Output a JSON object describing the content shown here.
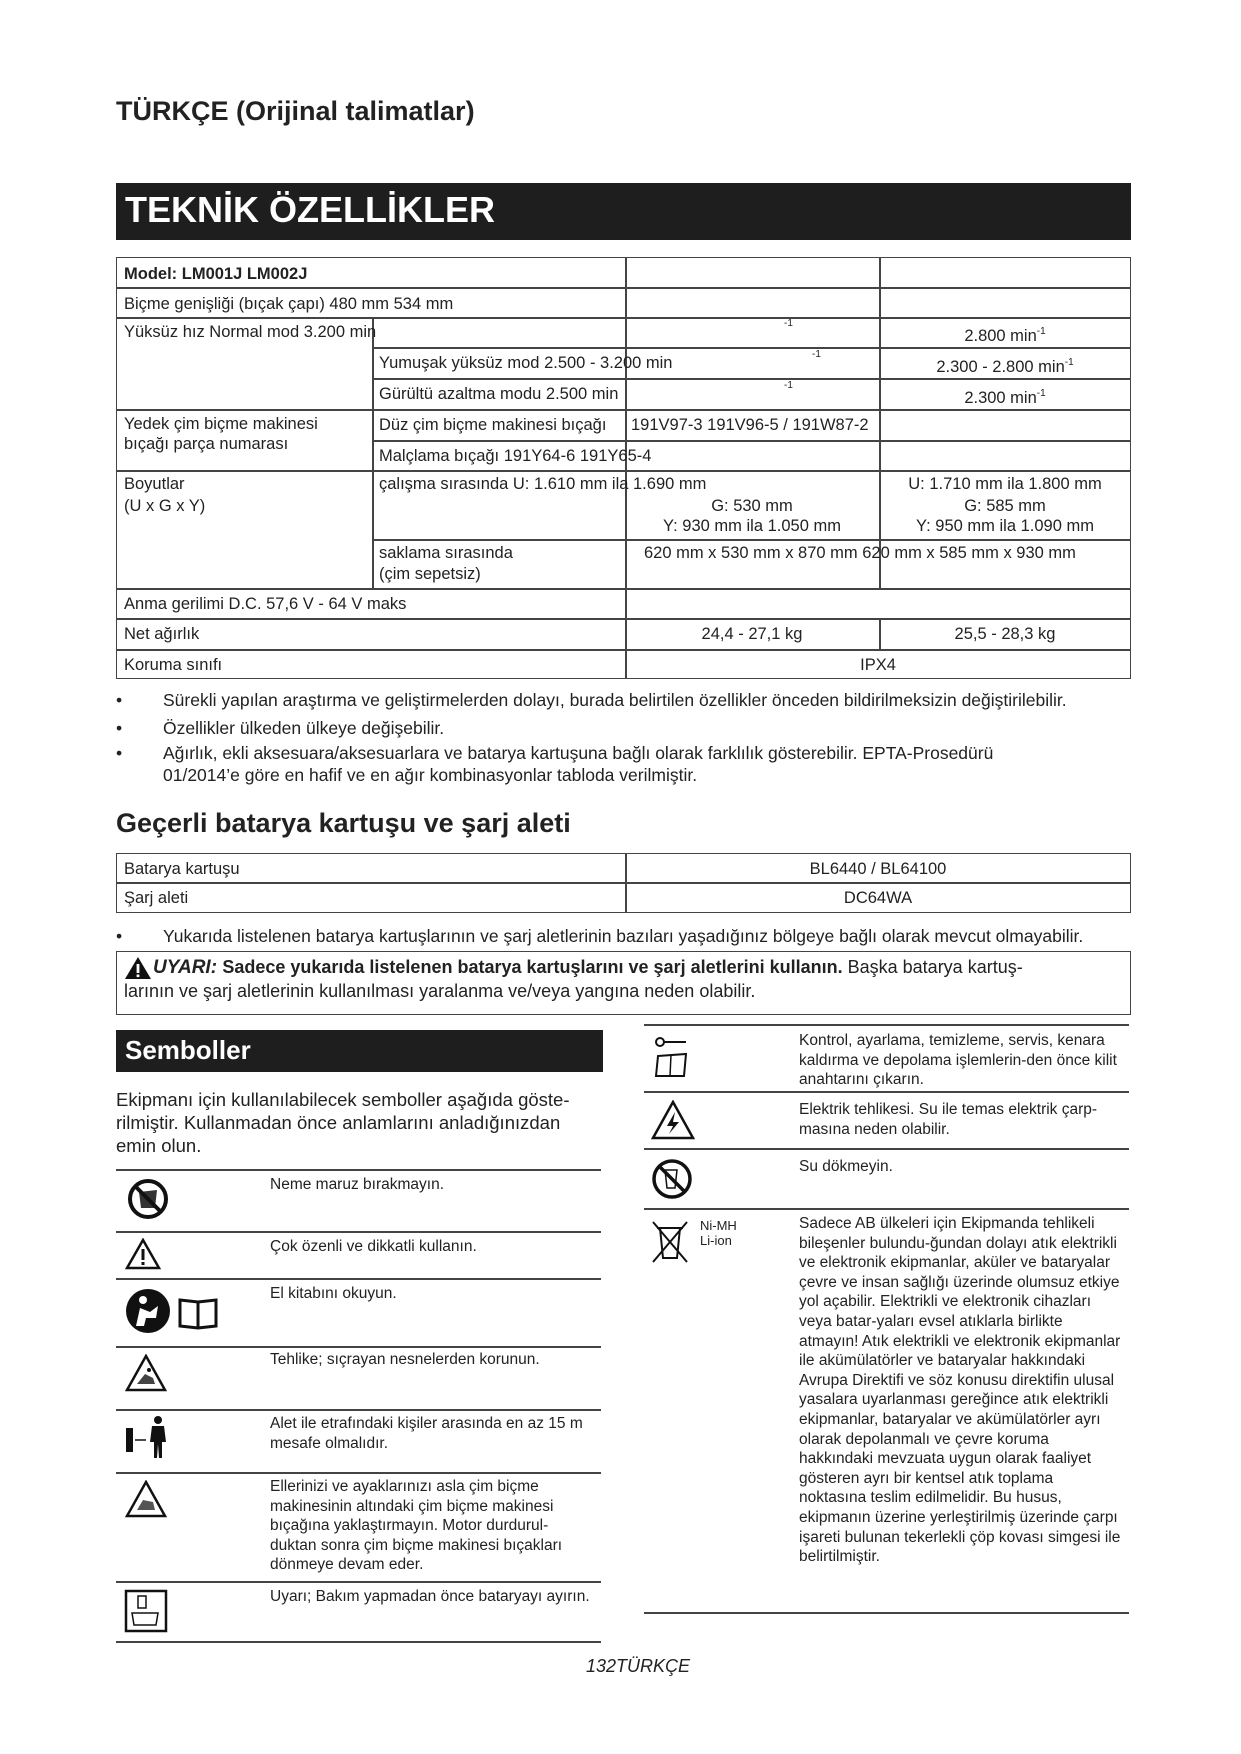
{
  "header": {
    "language_title": "TÜRKÇE (Orijinal talimatlar)"
  },
  "specs": {
    "title": "TEKNİK ÖZELLİKLER",
    "model": "Model: LM001J LM002J",
    "cutting_width": "Biçme genişliği (bıçak çapı)   480 mm 534 mm",
    "no_load_speed": {
      "label": "Yüksüz hız   Normal mod 3.200 min",
      "sup": "-1",
      "lm002_normal": "2.800 min",
      "soft_label": "Yumuşak yüksüz mod   2.500 - 3.200 min",
      "lm002_soft": "2.300 - 2.800 min",
      "quiet_label": "Gürültü azaltma modu 2.500 min",
      "lm002_quiet": "2.300 min"
    },
    "blade": {
      "label1": "Yedek çim biçme makinesi",
      "label2": "bıçağı parça numarası",
      "flat": "Düz çim biçme makinesi bıçağı",
      "flat_value": "191V97-3 191V96-5 / 191W87-2",
      "mulch": "Malçlama bıçağı    191Y64-6 191Y65-4"
    },
    "dimensions": {
      "label1": "Boyutlar",
      "label2": "(U x G x Y)",
      "operating": "çalışma sırasında    U: 1.610 mm ila 1.690 mm",
      "op1_g": "G: 530 mm",
      "op1_y": "Y: 930 mm ila 1.050 mm",
      "op2_u": "U: 1.710 mm ila 1.800 mm",
      "op2_g": "G: 585 mm",
      "op2_y": "Y: 950 mm ila 1.090 mm",
      "storage1": "saklama sırasında",
      "storage2": "(çim sepetsiz)",
      "storage_value": "620 mm x 530 mm x 870 mm 620 mm x 585 mm x 930 mm"
    },
    "voltage": "Anma gerilimi   D.C. 57,6 V - 64 V maks",
    "weight": {
      "label": "Net ağırlık",
      "lm001": "24,4 - 27,1 kg",
      "lm002": "25,5 - 28,3 kg"
    },
    "protection": {
      "label": "Koruma sınıfı",
      "value": "IPX4"
    }
  },
  "notes": [
    "Sürekli yapılan araştırma ve geliştirmelerden dolayı, burada belirtilen özellikler önceden bildirilmeksizin değiştirilebilir.",
    "Özellikler ülkeden ülkeye değişebilir.",
    "Ağırlık, ekli aksesuara/aksesuarlara ve batarya kartuşuna bağlı olarak farklılık gösterebilir. EPTA-Prosedürü",
    "01/2014’e göre en hafif ve en ağır kombinasyonlar tabloda verilmiştir."
  ],
  "battery": {
    "title": "Geçerli batarya kartuşu ve şarj aleti",
    "rows": [
      {
        "label": "Batarya kartuşu",
        "value": "BL6440 / BL64100"
      },
      {
        "label": "Şarj aleti",
        "value": "DC64WA"
      }
    ],
    "note": "Yukarıda listelenen batarya kartuşlarının ve şarj aletlerinin bazıları yaşadığınız bölgeye bağlı olarak mevcut olmayabilir."
  },
  "warning": {
    "label": "UYARI:",
    "bold": "Sadece yukarıda listelenen batarya kartuşlarını ve şarj aletlerini kullanın.",
    "rest1": " Başka batarya kartuş-",
    "rest2": "larının ve şarj aletlerinin kullanılması yaralanma ve/veya yangına neden olabilir."
  },
  "symbols": {
    "title": "Semboller",
    "intro": [
      "Ekipmanı için kullanılabilecek semboller aşağıda göste-",
      "rilmiştir. Kullanmadan önce anlamlarını anladığınızdan",
      "emin olun."
    ],
    "left": [
      {
        "icon": "no-rain-icon",
        "text": "Neme maruz bırakmayın."
      },
      {
        "icon": "warning-triangle-icon",
        "text": "Çok özenli ve dikkatli kullanın."
      },
      {
        "icon": "read-manual-icon",
        "text": "El kitabını okuyun."
      },
      {
        "icon": "flying-objects-icon",
        "text": "Tehlike; sıçrayan nesnelerden korunun."
      },
      {
        "icon": "keep-distance-icon",
        "text": "Alet ile etrafındaki kişiler arasında en az 15 m mesafe olmalıdır."
      },
      {
        "icon": "blade-hand-icon",
        "text": "Ellerinizi ve ayaklarınızı asla çim biçme makinesinin altındaki çim biçme makinesi bıçağına yaklaştırmayın. Motor durdurul-duktan sonra çim biçme makinesi bıçakları dönmeye devam eder."
      },
      {
        "icon": "remove-battery-icon",
        "text": "Uyarı; Bakım yapmadan önce bataryayı ayırın."
      }
    ],
    "right": [
      {
        "icon": "remove-key-icon",
        "text": "Kontrol, ayarlama, temizleme, servis, kenara kaldırma ve depolama işlemlerin-den önce kilit anahtarını çıkarın."
      },
      {
        "icon": "electric-hazard-icon",
        "text": "Elektrik tehlikesi. Su ile temas elektrik çarp-masına neden olabilir."
      },
      {
        "icon": "no-water-icon",
        "text": "Su dökmeyin."
      },
      {
        "icon": "crossed-bin-icon",
        "badge1": "Ni-MH",
        "badge2": "Li-ion",
        "text": "Sadece AB ülkeleri için Ekipmanda tehlikeli bileşenler bulundu-ğundan dolayı atık elektrikli ve elektronik ekipmanlar, aküler ve bataryalar çevre ve insan sağlığı üzerinde olumsuz etkiye yol açabilir. Elektrikli ve elektronik cihazları veya batar-yaları evsel atıklarla birlikte atmayın! Atık elektrikli ve elektronik ekipmanlar ile akümülatörler ve bataryalar hakkındaki Avrupa Direktifi ve söz konusu direktifin ulusal yasalara uyarlanması gereğince atık elektrikli ekipmanlar, bataryalar ve akümülatörler ayrı olarak depolanmalı ve çevre koruma hakkındaki mevzuata uygun olarak faaliyet gösteren ayrı bir kentsel atık toplama noktasına teslim edilmelidir. Bu husus, ekipmanın üzerine yerleştirilmiş üzerinde çarpı işareti bulunan tekerlekli çöp kovası simgesi ile belirtilmiştir."
      }
    ]
  },
  "footer": {
    "page": "132TÜRKÇE"
  }
}
